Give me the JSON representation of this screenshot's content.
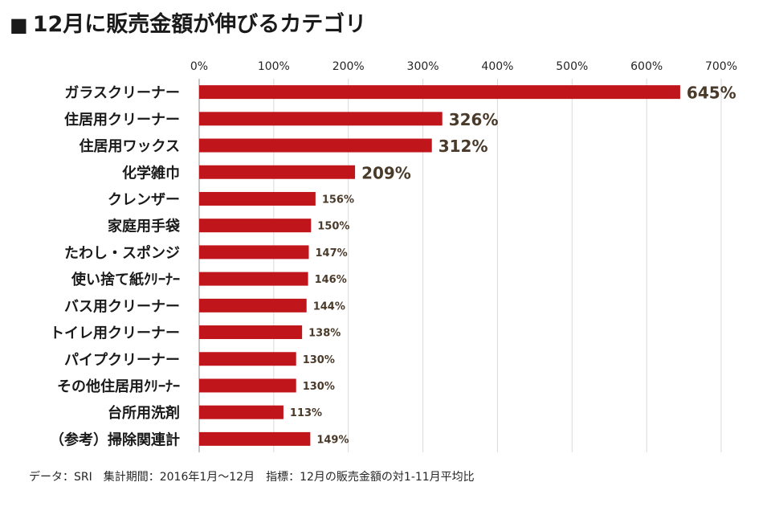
{
  "header": {
    "bullet": "■",
    "title": "12月に販売金額が伸びるカテゴリ"
  },
  "footnote": "データ：SRI　集計期間：2016年1月～12月　指標：12月の販売金額の対1-11月平均比",
  "colors": {
    "bar": "#C0161B",
    "grid": "#d9d9d9",
    "axis": "#262626",
    "label": "#4a3a2a"
  },
  "chart_data": {
    "type": "bar",
    "orientation": "horizontal",
    "title": "",
    "xlabel": "",
    "ylabel": "",
    "xlim": [
      0,
      700
    ],
    "ticks": [
      0,
      100,
      200,
      300,
      400,
      500,
      600,
      700
    ],
    "tick_labels": [
      "0%",
      "100%",
      "200%",
      "300%",
      "400%",
      "500%",
      "600%",
      "700%"
    ],
    "grid": true,
    "categories": [
      "ガラスクリーナー",
      "住居用クリーナー",
      "住居用ワックス",
      "化学雑巾",
      "クレンザー",
      "家庭用手袋",
      "たわし・スポンジ",
      "使い捨て紙ｸﾘｰﾅｰ",
      "バス用クリーナー",
      "トイレ用クリーナー",
      "パイプクリーナー",
      "その他住居用ｸﾘｰﾅｰ",
      "台所用洗剤",
      "（参考）掃除関連計"
    ],
    "values": [
      645,
      326,
      312,
      209,
      156,
      150,
      147,
      146,
      144,
      138,
      130,
      130,
      113,
      149
    ],
    "value_labels": [
      "645%",
      "326%",
      "312%",
      "209%",
      "156%",
      "150%",
      "147%",
      "146%",
      "144%",
      "138%",
      "130%",
      "130%",
      "113%",
      "149%"
    ],
    "highlighted_labels": [
      true,
      true,
      true,
      true,
      false,
      false,
      false,
      false,
      false,
      false,
      false,
      false,
      false,
      false
    ]
  }
}
